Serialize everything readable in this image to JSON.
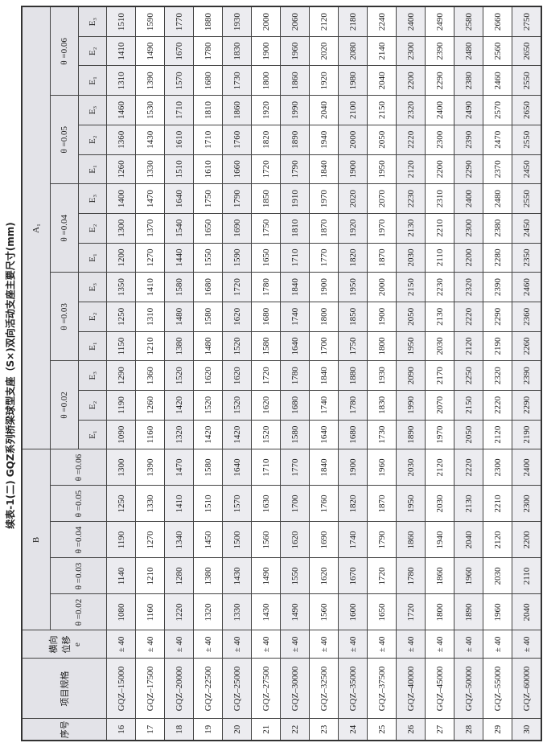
{
  "title": "续表-1(二)  GQZ系列桥梁球型支座（S×)双向活动支座主要尺寸(mm)",
  "headers": {
    "no": "序号",
    "spec": "项目规格",
    "disp": "横向位移",
    "disp_sym": "e",
    "B": "B",
    "A1": "A₁",
    "thetas": [
      "θ =0.02",
      "θ =0.03",
      "θ =0.04",
      "θ =0.05",
      "θ =0.06"
    ],
    "E": [
      "E₁",
      "E₂",
      "E₃"
    ]
  },
  "rows": [
    {
      "no": "16",
      "spec": "GQZ–15000",
      "e": "± 40",
      "B": [
        "1080",
        "1140",
        "1190",
        "1250",
        "1300"
      ],
      "A": [
        "1090",
        "1190",
        "1290",
        "1150",
        "1250",
        "1350",
        "1200",
        "1300",
        "1400",
        "1260",
        "1360",
        "1460",
        "1310",
        "1410",
        "1510"
      ]
    },
    {
      "no": "17",
      "spec": "GQZ–17500",
      "e": "± 40",
      "B": [
        "1160",
        "1210",
        "1270",
        "1330",
        "1390"
      ],
      "A": [
        "1160",
        "1260",
        "1360",
        "1210",
        "1310",
        "1410",
        "1270",
        "1370",
        "1470",
        "1330",
        "1430",
        "1530",
        "1390",
        "1490",
        "1590"
      ]
    },
    {
      "no": "18",
      "spec": "GQZ–20000",
      "e": "± 40",
      "B": [
        "1220",
        "1280",
        "1340",
        "1410",
        "1470"
      ],
      "A": [
        "1320",
        "1420",
        "1520",
        "1380",
        "1480",
        "1580",
        "1440",
        "1540",
        "1640",
        "1510",
        "1610",
        "1710",
        "1570",
        "1670",
        "1770"
      ]
    },
    {
      "no": "19",
      "spec": "GQZ–22500",
      "e": "± 40",
      "B": [
        "1320",
        "1380",
        "1450",
        "1510",
        "1580"
      ],
      "A": [
        "1420",
        "1520",
        "1620",
        "1480",
        "1580",
        "1680",
        "1550",
        "1650",
        "1750",
        "1610",
        "1710",
        "1810",
        "1680",
        "1780",
        "1880"
      ]
    },
    {
      "no": "20",
      "spec": "GQZ–25000",
      "e": "± 40",
      "B": [
        "1330",
        "1430",
        "1500",
        "1570",
        "1640"
      ],
      "A": [
        "1420",
        "1520",
        "1620",
        "1520",
        "1620",
        "1720",
        "1590",
        "1690",
        "1790",
        "1660",
        "1760",
        "1860",
        "1730",
        "1830",
        "1930"
      ]
    },
    {
      "no": "21",
      "spec": "GQZ–27500",
      "e": "± 40",
      "B": [
        "1430",
        "1490",
        "1560",
        "1630",
        "1710"
      ],
      "A": [
        "1520",
        "1620",
        "1720",
        "1580",
        "1680",
        "1780",
        "1650",
        "1750",
        "1850",
        "1720",
        "1820",
        "1920",
        "1800",
        "1900",
        "2000"
      ]
    },
    {
      "no": "22",
      "spec": "GQZ–30000",
      "e": "± 40",
      "B": [
        "1490",
        "1550",
        "1620",
        "1700",
        "1770"
      ],
      "A": [
        "1580",
        "1680",
        "1780",
        "1640",
        "1740",
        "1840",
        "1710",
        "1810",
        "1910",
        "1790",
        "1890",
        "1990",
        "1860",
        "1960",
        "2060"
      ]
    },
    {
      "no": "23",
      "spec": "GQZ–32500",
      "e": "± 40",
      "B": [
        "1560",
        "1620",
        "1690",
        "1760",
        "1840"
      ],
      "A": [
        "1640",
        "1740",
        "1840",
        "1700",
        "1800",
        "1900",
        "1770",
        "1870",
        "1970",
        "1840",
        "1940",
        "2040",
        "1920",
        "2020",
        "2120"
      ]
    },
    {
      "no": "24",
      "spec": "GQZ–35000",
      "e": "± 40",
      "B": [
        "1600",
        "1670",
        "1740",
        "1820",
        "1900"
      ],
      "A": [
        "1680",
        "1780",
        "1880",
        "1750",
        "1850",
        "1950",
        "1820",
        "1920",
        "2020",
        "1900",
        "2000",
        "2100",
        "1980",
        "2080",
        "2180"
      ]
    },
    {
      "no": "25",
      "spec": "GQZ–37500",
      "e": "± 40",
      "B": [
        "1650",
        "1720",
        "1790",
        "1870",
        "1960"
      ],
      "A": [
        "1730",
        "1830",
        "1930",
        "1800",
        "1900",
        "2000",
        "1870",
        "1970",
        "2070",
        "1950",
        "2050",
        "2150",
        "2040",
        "2140",
        "2240"
      ]
    },
    {
      "no": "26",
      "spec": "GQZ–40000",
      "e": "± 40",
      "B": [
        "1720",
        "1780",
        "1860",
        "1950",
        "2030"
      ],
      "A": [
        "1890",
        "1990",
        "2090",
        "1950",
        "2050",
        "2150",
        "2030",
        "2130",
        "2230",
        "2120",
        "2220",
        "2320",
        "2200",
        "2300",
        "2400"
      ]
    },
    {
      "no": "27",
      "spec": "GQZ–45000",
      "e": "± 40",
      "B": [
        "1800",
        "1860",
        "1940",
        "2030",
        "2120"
      ],
      "A": [
        "1970",
        "2070",
        "2170",
        "2030",
        "2130",
        "2230",
        "2110",
        "2210",
        "2310",
        "2200",
        "2300",
        "2400",
        "2290",
        "2390",
        "2490"
      ]
    },
    {
      "no": "28",
      "spec": "GQZ–50000",
      "e": "± 40",
      "B": [
        "1890",
        "1960",
        "2040",
        "2130",
        "2220"
      ],
      "A": [
        "2050",
        "2150",
        "2250",
        "2120",
        "2220",
        "2320",
        "2200",
        "2300",
        "2400",
        "2290",
        "2390",
        "2490",
        "2380",
        "2480",
        "2580"
      ]
    },
    {
      "no": "29",
      "spec": "GQZ–55000",
      "e": "± 40",
      "B": [
        "1960",
        "2030",
        "2120",
        "2210",
        "2300"
      ],
      "A": [
        "2120",
        "2220",
        "2320",
        "2190",
        "2290",
        "2390",
        "2280",
        "2380",
        "2480",
        "2370",
        "2470",
        "2570",
        "2460",
        "2560",
        "2660"
      ]
    },
    {
      "no": "30",
      "spec": "GQZ–60000",
      "e": "± 40",
      "B": [
        "2040",
        "2110",
        "2200",
        "2300",
        "2400"
      ],
      "A": [
        "2190",
        "2290",
        "2390",
        "2260",
        "2360",
        "2460",
        "2350",
        "2450",
        "2550",
        "2450",
        "2550",
        "2650",
        "2550",
        "2650",
        "2750"
      ]
    }
  ]
}
